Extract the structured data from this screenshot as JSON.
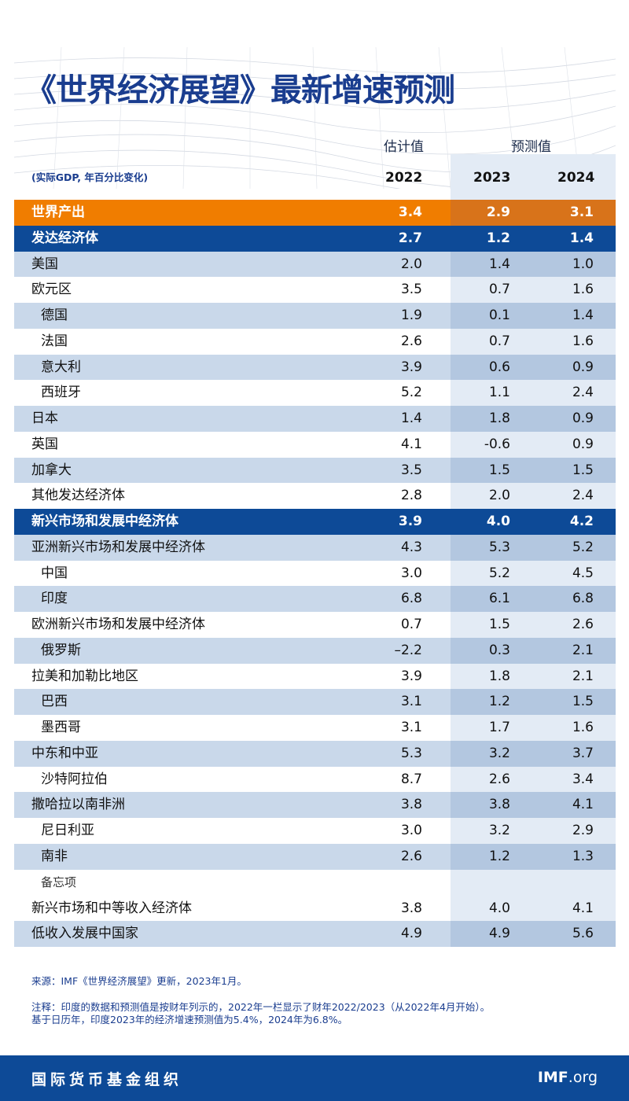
{
  "header": {
    "title": "《世界经济展望》最新增速预测",
    "estimate_label": "估计值",
    "forecast_label": "预测值",
    "unit_note": "(实际GDP, 年百分比变化)",
    "years": [
      "2022",
      "2023",
      "2024"
    ]
  },
  "table": {
    "rows": [
      {
        "label": "世界产出",
        "values": [
          "3.4",
          "2.9",
          "3.1"
        ],
        "style": "world",
        "indent": 0
      },
      {
        "label": "发达经济体",
        "values": [
          "2.7",
          "1.2",
          "1.4"
        ],
        "style": "group",
        "indent": 0
      },
      {
        "label": "美国",
        "values": [
          "2.0",
          "1.4",
          "1.0"
        ],
        "style": "shaded",
        "indent": 0
      },
      {
        "label": "欧元区",
        "values": [
          "3.5",
          "0.7",
          "1.6"
        ],
        "style": "plain",
        "indent": 0
      },
      {
        "label": "德国",
        "values": [
          "1.9",
          "0.1",
          "1.4"
        ],
        "style": "shaded",
        "indent": 1
      },
      {
        "label": "法国",
        "values": [
          "2.6",
          "0.7",
          "1.6"
        ],
        "style": "plain",
        "indent": 1
      },
      {
        "label": "意大利",
        "values": [
          "3.9",
          "0.6",
          "0.9"
        ],
        "style": "shaded",
        "indent": 1
      },
      {
        "label": "西班牙",
        "values": [
          "5.2",
          "1.1",
          "2.4"
        ],
        "style": "plain",
        "indent": 1
      },
      {
        "label": "日本",
        "values": [
          "1.4",
          "1.8",
          "0.9"
        ],
        "style": "shaded",
        "indent": 0
      },
      {
        "label": "英国",
        "values": [
          "4.1",
          "-0.6",
          "0.9"
        ],
        "style": "plain",
        "indent": 0
      },
      {
        "label": "加拿大",
        "values": [
          "3.5",
          "1.5",
          "1.5"
        ],
        "style": "shaded",
        "indent": 0
      },
      {
        "label": "其他发达经济体",
        "values": [
          "2.8",
          "2.0",
          "2.4"
        ],
        "style": "plain",
        "indent": 0
      },
      {
        "label": "新兴市场和发展中经济体",
        "values": [
          "3.9",
          "4.0",
          "4.2"
        ],
        "style": "group",
        "indent": 0
      },
      {
        "label": "亚洲新兴市场和发展中经济体",
        "values": [
          "4.3",
          "5.3",
          "5.2"
        ],
        "style": "shaded",
        "indent": 0
      },
      {
        "label": "中国",
        "values": [
          "3.0",
          "5.2",
          "4.5"
        ],
        "style": "plain",
        "indent": 1
      },
      {
        "label": "印度",
        "values": [
          "6.8",
          "6.1",
          "6.8"
        ],
        "style": "shaded",
        "indent": 1
      },
      {
        "label": "欧洲新兴市场和发展中经济体",
        "values": [
          "0.7",
          "1.5",
          "2.6"
        ],
        "style": "plain",
        "indent": 0
      },
      {
        "label": "俄罗斯",
        "values": [
          "–2.2",
          "0.3",
          "2.1"
        ],
        "style": "shaded",
        "indent": 1
      },
      {
        "label": "拉美和加勒比地区",
        "values": [
          "3.9",
          "1.8",
          "2.1"
        ],
        "style": "plain",
        "indent": 0
      },
      {
        "label": "巴西",
        "values": [
          "3.1",
          "1.2",
          "1.5"
        ],
        "style": "shaded",
        "indent": 1
      },
      {
        "label": "墨西哥",
        "values": [
          "3.1",
          "1.7",
          "1.6"
        ],
        "style": "plain",
        "indent": 1
      },
      {
        "label": "中东和中亚",
        "values": [
          "5.3",
          "3.2",
          "3.7"
        ],
        "style": "shaded",
        "indent": 0
      },
      {
        "label": "沙特阿拉伯",
        "values": [
          "8.7",
          "2.6",
          "3.4"
        ],
        "style": "plain",
        "indent": 1
      },
      {
        "label": "撒哈拉以南非洲",
        "values": [
          "3.8",
          "3.8",
          "4.1"
        ],
        "style": "shaded",
        "indent": 0
      },
      {
        "label": "尼日利亚",
        "values": [
          "3.0",
          "3.2",
          "2.9"
        ],
        "style": "plain",
        "indent": 1
      },
      {
        "label": "南非",
        "values": [
          "2.6",
          "1.2",
          "1.3"
        ],
        "style": "shaded",
        "indent": 1
      },
      {
        "label": "备忘项",
        "style": "memo",
        "indent": 1
      },
      {
        "label": "新兴市场和中等收入经济体",
        "values": [
          "3.8",
          "4.0",
          "4.1"
        ],
        "style": "plain",
        "indent": 0
      },
      {
        "label": "低收入发展中国家",
        "values": [
          "4.9",
          "4.9",
          "5.6"
        ],
        "style": "shaded",
        "indent": 0
      }
    ]
  },
  "footnotes": {
    "source": "来源：IMF《世界经济展望》更新，2023年1月。",
    "note_1": "注释：印度的数据和预测值是按财年列示的，2022年一栏显示了财年2022/2023（从2022年4月开始）。",
    "note_2": "基于日历年，印度2023年的经济增速预测值为5.4%，2024年为6.8%。"
  },
  "footer": {
    "org": "国际货币基金组织",
    "site_bold": "IMF",
    "site_rest": ".org"
  }
}
